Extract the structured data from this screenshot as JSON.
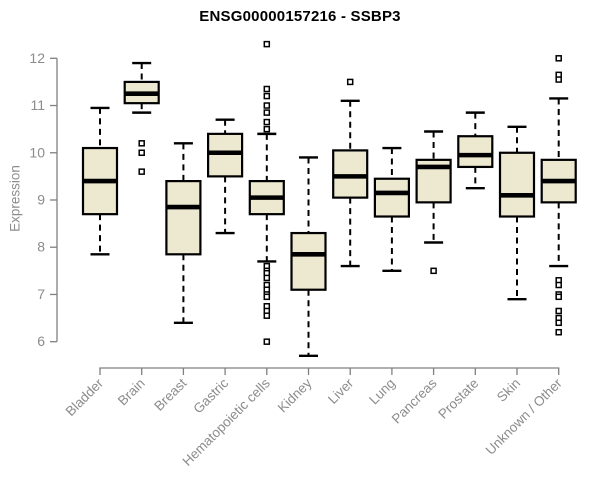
{
  "title": "ENSG00000157216 - SSBP3",
  "chart_data": {
    "type": "boxplot",
    "title": "ENSG00000157216 - SSBP3",
    "ylabel": "Expression",
    "xlabel": "",
    "ylim": [
      5.6,
      12.4
    ],
    "yticks": [
      6,
      7,
      8,
      9,
      10,
      11,
      12
    ],
    "grid": false,
    "legend": false,
    "categories": [
      "Bladder",
      "Brain",
      "Breast",
      "Gastric",
      "Hematopoietic cells",
      "Kidney",
      "Liver",
      "Lung",
      "Pancreas",
      "Prostate",
      "Skin",
      "Unknown / Other"
    ],
    "boxes": [
      {
        "category": "Bladder",
        "whisker_low": 7.85,
        "q1": 8.7,
        "median": 9.4,
        "q3": 10.1,
        "whisker_high": 10.95,
        "outliers": []
      },
      {
        "category": "Brain",
        "whisker_low": 10.85,
        "q1": 11.05,
        "median": 11.25,
        "q3": 11.5,
        "whisker_high": 11.9,
        "outliers": [
          10.2,
          10.0,
          9.6
        ]
      },
      {
        "category": "Breast",
        "whisker_low": 6.4,
        "q1": 7.85,
        "median": 8.85,
        "q3": 9.4,
        "whisker_high": 10.2,
        "outliers": []
      },
      {
        "category": "Gastric",
        "whisker_low": 8.3,
        "q1": 9.5,
        "median": 10.0,
        "q3": 10.4,
        "whisker_high": 10.7,
        "outliers": []
      },
      {
        "category": "Hematopoietic cells",
        "whisker_low": 7.7,
        "q1": 8.7,
        "median": 9.05,
        "q3": 9.4,
        "whisker_high": 10.4,
        "outliers": [
          12.3,
          11.35,
          11.2,
          11.0,
          10.85,
          10.65,
          10.5,
          7.6,
          7.5,
          7.45,
          7.35,
          7.2,
          7.1,
          7.0,
          6.95,
          6.75,
          6.65,
          6.55,
          6.0
        ]
      },
      {
        "category": "Kidney",
        "whisker_low": 5.7,
        "q1": 7.1,
        "median": 7.85,
        "q3": 8.3,
        "whisker_high": 9.9,
        "outliers": []
      },
      {
        "category": "Liver",
        "whisker_low": 7.6,
        "q1": 9.05,
        "median": 9.5,
        "q3": 10.05,
        "whisker_high": 11.1,
        "outliers": [
          11.5
        ]
      },
      {
        "category": "Lung",
        "whisker_low": 7.5,
        "q1": 8.65,
        "median": 9.15,
        "q3": 9.45,
        "whisker_high": 10.1,
        "outliers": []
      },
      {
        "category": "Pancreas",
        "whisker_low": 8.1,
        "q1": 8.95,
        "median": 9.7,
        "q3": 9.85,
        "whisker_high": 10.45,
        "outliers": [
          7.5
        ]
      },
      {
        "category": "Prostate",
        "whisker_low": 9.25,
        "q1": 9.7,
        "median": 9.95,
        "q3": 10.35,
        "whisker_high": 10.85,
        "outliers": []
      },
      {
        "category": "Skin",
        "whisker_low": 6.9,
        "q1": 8.65,
        "median": 9.1,
        "q3": 10.0,
        "whisker_high": 10.55,
        "outliers": []
      },
      {
        "category": "Unknown / Other",
        "whisker_low": 7.6,
        "q1": 8.95,
        "median": 9.4,
        "q3": 9.85,
        "whisker_high": 11.15,
        "outliers": [
          12.0,
          11.65,
          11.55,
          7.3,
          7.2,
          7.0,
          6.95,
          6.65,
          6.5,
          6.4,
          6.2
        ]
      }
    ],
    "colors": {
      "box_fill": "#EDE8D0",
      "box_stroke": "#000000",
      "median": "#000000",
      "whisker": "#000000",
      "outlier_fill": "#FFFFFF",
      "outlier_stroke": "#000000",
      "axis": "#808080",
      "labels": "#8C8C8C",
      "title": "#000000",
      "background": "#FFFFFF"
    }
  }
}
